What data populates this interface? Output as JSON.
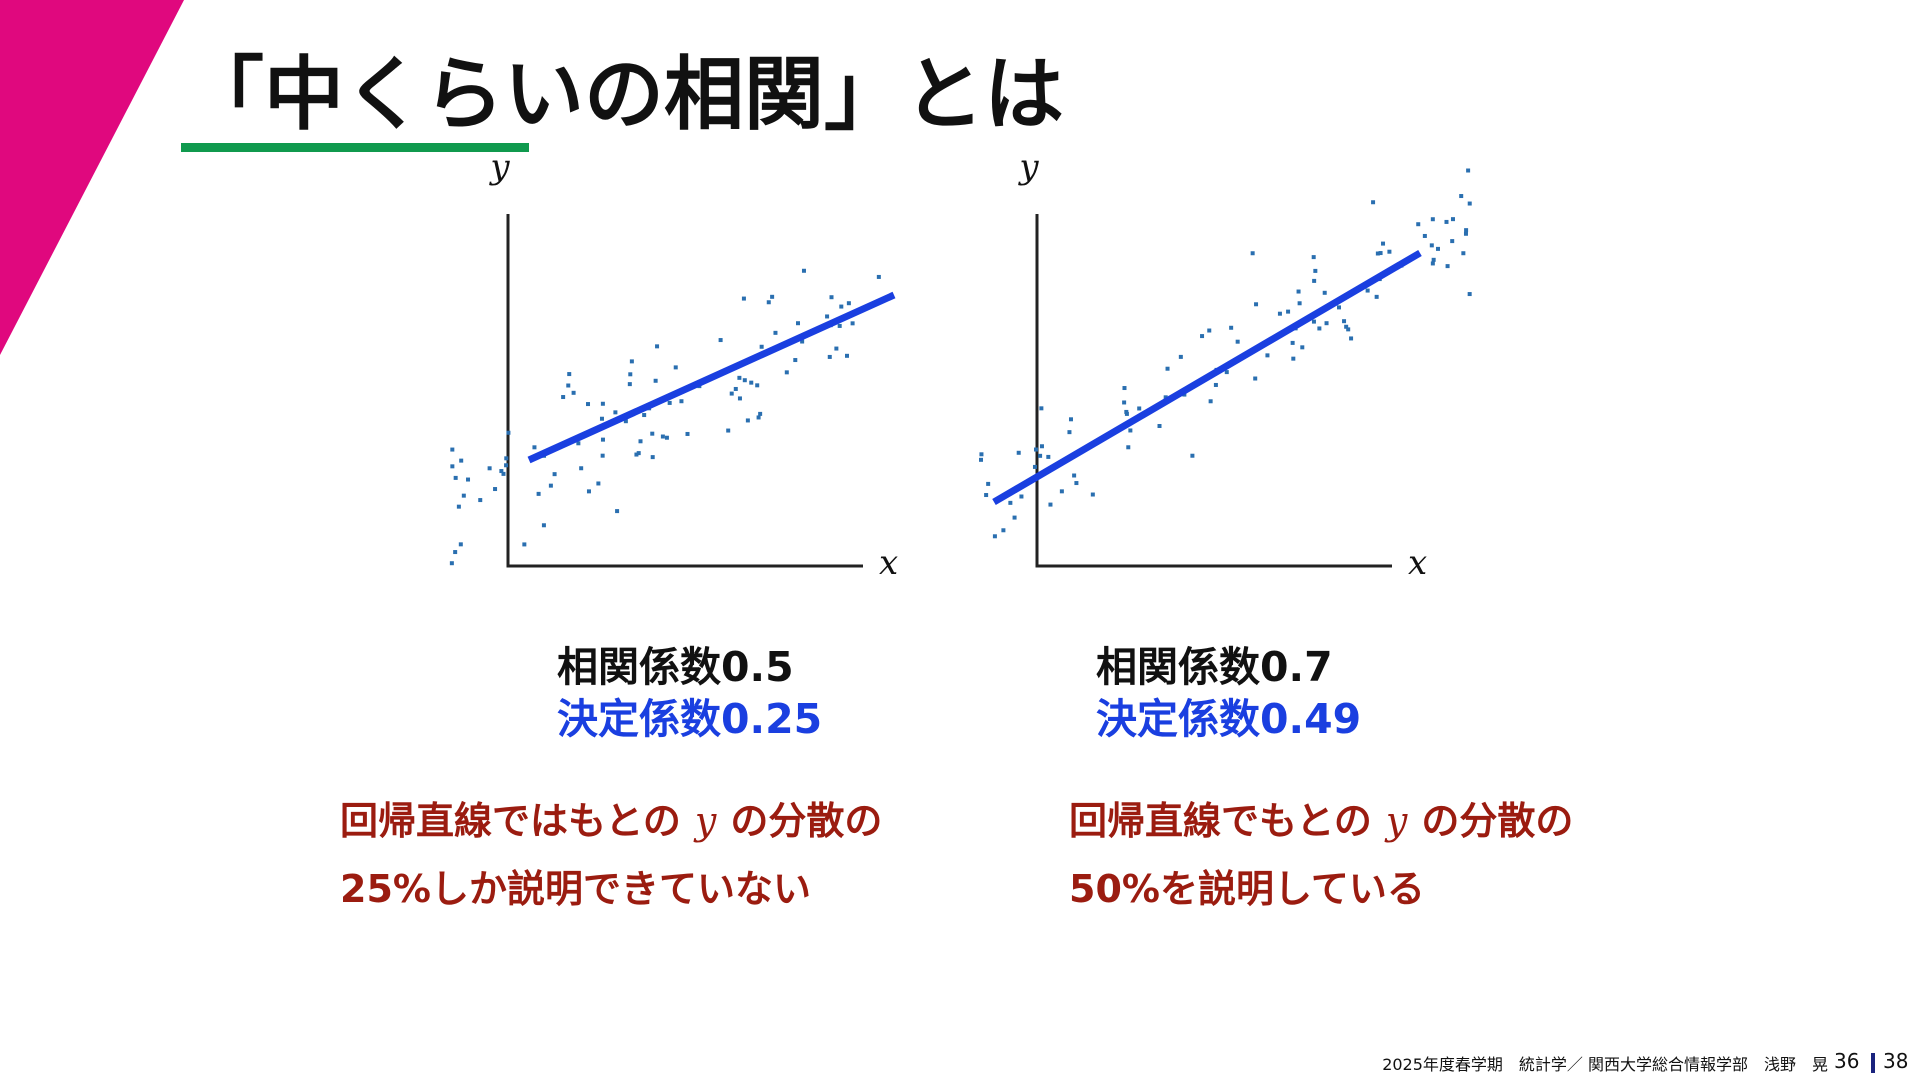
{
  "title": "「中くらいの相関」とは",
  "panels": [
    {
      "axis_y": "y",
      "axis_x": "x",
      "correlation": "相関係数0.5",
      "determination": "決定係数0.25",
      "explanation": {
        "line1_before": "回帰直線ではもとの",
        "line1_var": "y",
        "line1_after": "の分散の",
        "line2": "25%しか説明できていない"
      }
    },
    {
      "axis_y": "y",
      "axis_x": "x",
      "correlation": "相関係数0.7",
      "determination": "決定係数0.49",
      "explanation": {
        "line1_before": "回帰直線でもとの",
        "line1_var": "y",
        "line1_after": "の分散の",
        "line2": "50%を説明している"
      }
    }
  ],
  "footer": {
    "course": "2025年度春学期　統計学／ 関西大学総合情報学部　浅野　晃",
    "page": "36",
    "total": "38"
  }
}
